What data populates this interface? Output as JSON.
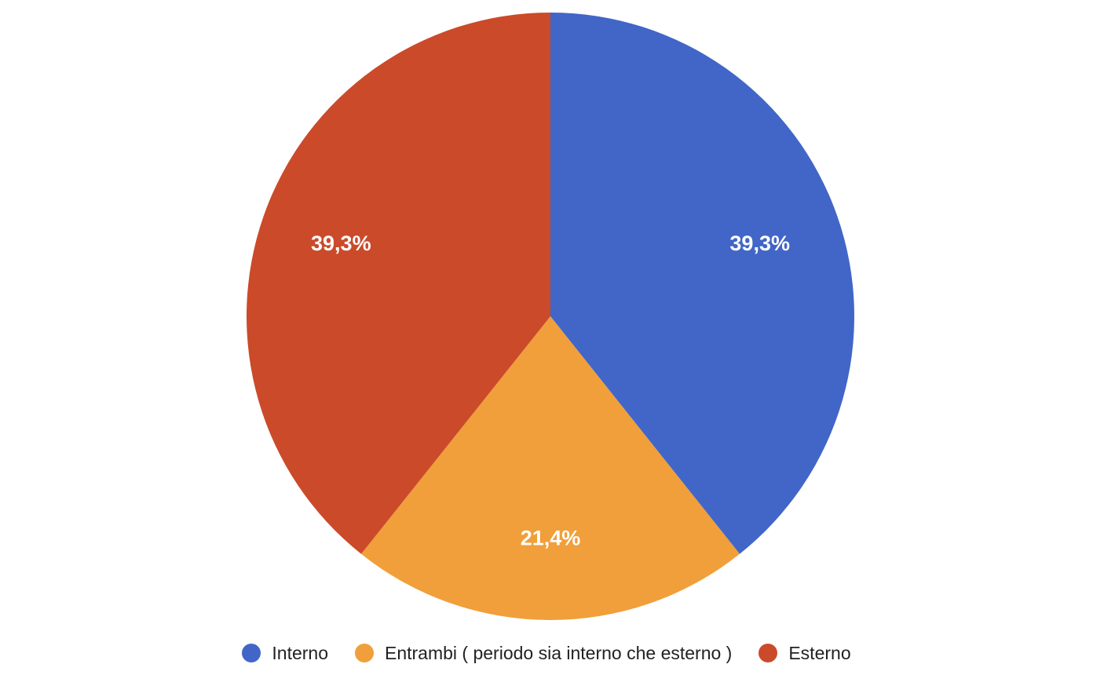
{
  "chart_data": {
    "type": "pie",
    "categories": [
      "Interno",
      "Entrambi ( periodo sia interno che esterno )",
      "Esterno"
    ],
    "values": [
      39.3,
      21.4,
      39.3
    ],
    "data_labels": [
      "39,3%",
      "21,4%",
      "39,3%"
    ],
    "colors": [
      "#4166C7",
      "#F09F3A",
      "#CB4A2A"
    ],
    "legend_position": "bottom",
    "start_angle_deg": 0,
    "direction": "clockwise"
  }
}
